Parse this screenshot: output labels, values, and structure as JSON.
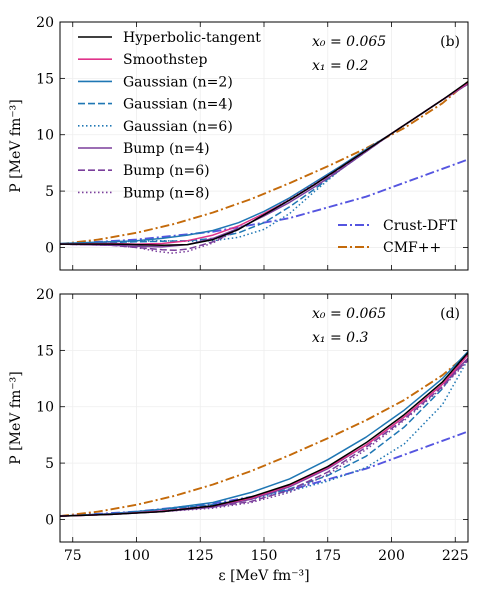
{
  "figure": {
    "xlabel": "ε [MeV fm⁻³]",
    "ylabel": "P [MeV fm⁻³]",
    "xticks": [
      75,
      100,
      125,
      150,
      175,
      200,
      225
    ],
    "yticks": [
      0,
      5,
      10,
      15,
      20
    ]
  },
  "chart_data": [
    {
      "type": "line",
      "panel_label": "(b)",
      "params": [
        "x₀ = 0.065",
        "x₁ = 0.2"
      ],
      "xlim": [
        70,
        230
      ],
      "ylim": [
        -2,
        20
      ],
      "legend_left": [
        {
          "name": "Hyperbolic-tangent",
          "color": "#000000",
          "dash": "solid"
        },
        {
          "name": "Smoothstep",
          "color": "#e0338a",
          "dash": "solid"
        },
        {
          "name": "Gaussian (n=2)",
          "color": "#1f77b4",
          "dash": "solid"
        },
        {
          "name": "Gaussian (n=4)",
          "color": "#1f77b4",
          "dash": "dashed"
        },
        {
          "name": "Gaussian (n=6)",
          "color": "#1f77b4",
          "dash": "dotted"
        },
        {
          "name": "Bump (n=4)",
          "color": "#7b3f9c",
          "dash": "solid"
        },
        {
          "name": "Bump (n=6)",
          "color": "#7b3f9c",
          "dash": "dashed"
        },
        {
          "name": "Bump (n=8)",
          "color": "#7b3f9c",
          "dash": "dotted"
        }
      ],
      "legend_right": [
        {
          "name": "Crust-DFT",
          "color": "#5555e0",
          "dash": "dashdot"
        },
        {
          "name": "CMF++",
          "color": "#c46a0a",
          "dash": "dashdot"
        }
      ],
      "series": [
        {
          "name": "Crust-DFT",
          "x": [
            70,
            100,
            130,
            160,
            190,
            230
          ],
          "y": [
            0.3,
            0.7,
            1.4,
            2.6,
            4.5,
            7.8
          ]
        },
        {
          "name": "CMF++",
          "x": [
            70,
            85,
            100,
            115,
            130,
            145,
            160,
            175,
            190,
            205,
            220,
            230
          ],
          "y": [
            0.3,
            0.7,
            1.3,
            2.1,
            3.1,
            4.3,
            5.7,
            7.2,
            8.8,
            10.6,
            12.8,
            14.7
          ]
        },
        {
          "name": "Hyperbolic-tangent",
          "x": [
            70,
            90,
            100,
            110,
            120,
            130,
            140,
            150,
            160,
            170,
            180,
            190,
            200,
            210,
            220,
            230
          ],
          "y": [
            0.3,
            0.3,
            0.25,
            0.2,
            0.25,
            0.7,
            1.6,
            2.9,
            4.2,
            5.6,
            7.1,
            8.6,
            10.1,
            11.6,
            13.1,
            14.7
          ]
        },
        {
          "name": "Smoothstep",
          "x": [
            70,
            90,
            100,
            110,
            120,
            130,
            140,
            150,
            160,
            170,
            180,
            190,
            200,
            210,
            220,
            230
          ],
          "y": [
            0.3,
            0.35,
            0.3,
            0.35,
            0.6,
            1.1,
            1.9,
            3.0,
            4.2,
            5.6,
            7.1,
            8.6,
            10.1,
            11.6,
            13.1,
            14.6
          ]
        },
        {
          "name": "Gaussian (n=2)",
          "x": [
            70,
            90,
            100,
            110,
            120,
            130,
            140,
            150,
            160,
            170,
            180,
            190,
            200,
            210,
            220,
            230
          ],
          "y": [
            0.35,
            0.5,
            0.6,
            0.8,
            1.1,
            1.5,
            2.2,
            3.2,
            4.4,
            5.8,
            7.2,
            8.7,
            10.1,
            11.6,
            13.1,
            14.6
          ]
        },
        {
          "name": "Gaussian (n=4)",
          "x": [
            70,
            90,
            100,
            110,
            120,
            130,
            140,
            150,
            160,
            170,
            180,
            190,
            200,
            210,
            220,
            230
          ],
          "y": [
            0.3,
            0.45,
            0.5,
            0.55,
            0.6,
            0.8,
            1.3,
            2.2,
            3.6,
            5.2,
            6.9,
            8.5,
            10.1,
            11.6,
            13.1,
            14.6
          ]
        },
        {
          "name": "Gaussian (n=6)",
          "x": [
            70,
            90,
            100,
            110,
            120,
            130,
            140,
            150,
            160,
            170,
            180,
            190,
            200,
            210,
            220,
            230
          ],
          "y": [
            0.3,
            0.5,
            0.55,
            0.6,
            0.55,
            0.6,
            0.9,
            1.6,
            3.0,
            5.0,
            6.9,
            8.5,
            10.1,
            11.6,
            13.1,
            14.6
          ]
        },
        {
          "name": "Bump (n=4)",
          "x": [
            70,
            90,
            100,
            110,
            120,
            130,
            140,
            150,
            160,
            170,
            180,
            190,
            200,
            210,
            220,
            230
          ],
          "y": [
            0.3,
            0.2,
            0.1,
            0.05,
            0.25,
            0.8,
            1.7,
            2.8,
            4.0,
            5.4,
            6.9,
            8.5,
            10.1,
            11.6,
            13.1,
            14.5
          ]
        },
        {
          "name": "Bump (n=6)",
          "x": [
            70,
            90,
            100,
            110,
            115,
            120,
            130,
            140,
            150,
            160,
            170,
            180,
            190,
            200,
            210,
            220,
            230
          ],
          "y": [
            0.3,
            0.2,
            0.0,
            -0.2,
            -0.25,
            -0.15,
            0.5,
            1.6,
            2.9,
            4.2,
            5.6,
            7.0,
            8.5,
            10.1,
            11.6,
            13.1,
            14.5
          ]
        },
        {
          "name": "Bump (n=8)",
          "x": [
            70,
            90,
            100,
            108,
            114,
            120,
            130,
            140,
            150,
            160,
            170,
            180,
            190,
            200,
            210,
            220,
            230
          ],
          "y": [
            0.3,
            0.2,
            0.0,
            -0.35,
            -0.5,
            -0.35,
            0.4,
            1.6,
            2.9,
            4.3,
            5.7,
            7.1,
            8.6,
            10.1,
            11.6,
            13.1,
            14.5
          ]
        }
      ]
    },
    {
      "type": "line",
      "panel_label": "(d)",
      "params": [
        "x₀ = 0.065",
        "x₁ = 0.3"
      ],
      "xlim": [
        70,
        230
      ],
      "ylim": [
        -2,
        20
      ],
      "series": [
        {
          "name": "Crust-DFT",
          "x": [
            70,
            100,
            130,
            160,
            190,
            230
          ],
          "y": [
            0.3,
            0.7,
            1.4,
            2.6,
            4.5,
            7.8
          ]
        },
        {
          "name": "CMF++",
          "x": [
            70,
            85,
            100,
            115,
            130,
            145,
            160,
            175,
            190,
            205,
            220,
            230
          ],
          "y": [
            0.3,
            0.7,
            1.3,
            2.1,
            3.1,
            4.3,
            5.7,
            7.2,
            8.8,
            10.6,
            12.8,
            14.7
          ]
        },
        {
          "name": "Hyperbolic-tangent",
          "x": [
            70,
            90,
            110,
            130,
            145,
            160,
            175,
            190,
            205,
            220,
            230
          ],
          "y": [
            0.3,
            0.45,
            0.7,
            1.2,
            2.0,
            3.1,
            4.7,
            6.8,
            9.3,
            12.2,
            14.8
          ]
        },
        {
          "name": "Smoothstep",
          "x": [
            70,
            90,
            110,
            130,
            145,
            160,
            175,
            190,
            205,
            220,
            230
          ],
          "y": [
            0.3,
            0.45,
            0.75,
            1.2,
            1.9,
            3.0,
            4.6,
            6.6,
            9.1,
            12.0,
            14.6
          ]
        },
        {
          "name": "Gaussian (n=2)",
          "x": [
            70,
            90,
            110,
            130,
            145,
            160,
            175,
            190,
            205,
            220,
            230
          ],
          "y": [
            0.3,
            0.5,
            0.9,
            1.5,
            2.4,
            3.6,
            5.3,
            7.3,
            9.7,
            12.5,
            14.9
          ]
        },
        {
          "name": "Gaussian (n=4)",
          "x": [
            70,
            90,
            110,
            130,
            145,
            160,
            175,
            190,
            205,
            220,
            230
          ],
          "y": [
            0.3,
            0.5,
            0.85,
            1.3,
            1.9,
            2.7,
            3.9,
            5.6,
            8.2,
            11.6,
            14.9
          ]
        },
        {
          "name": "Gaussian (n=6)",
          "x": [
            70,
            90,
            110,
            130,
            145,
            160,
            175,
            190,
            205,
            220,
            230
          ],
          "y": [
            0.3,
            0.5,
            0.85,
            1.3,
            1.8,
            2.5,
            3.4,
            4.6,
            6.7,
            10.2,
            14.2
          ]
        },
        {
          "name": "Bump (n=4)",
          "x": [
            70,
            90,
            110,
            130,
            145,
            160,
            175,
            190,
            205,
            220,
            230
          ],
          "y": [
            0.3,
            0.45,
            0.7,
            1.1,
            1.8,
            2.9,
            4.5,
            6.6,
            9.1,
            12.0,
            14.3
          ]
        },
        {
          "name": "Bump (n=6)",
          "x": [
            70,
            90,
            110,
            130,
            145,
            160,
            175,
            190,
            205,
            220,
            230
          ],
          "y": [
            0.3,
            0.45,
            0.7,
            1.1,
            1.6,
            2.6,
            4.2,
            6.4,
            8.9,
            11.8,
            14.2
          ]
        },
        {
          "name": "Bump (n=8)",
          "x": [
            70,
            90,
            110,
            130,
            145,
            160,
            175,
            190,
            205,
            220,
            230
          ],
          "y": [
            0.3,
            0.45,
            0.7,
            1.0,
            1.5,
            2.4,
            4.0,
            6.2,
            8.8,
            11.7,
            14.1
          ]
        }
      ]
    }
  ]
}
